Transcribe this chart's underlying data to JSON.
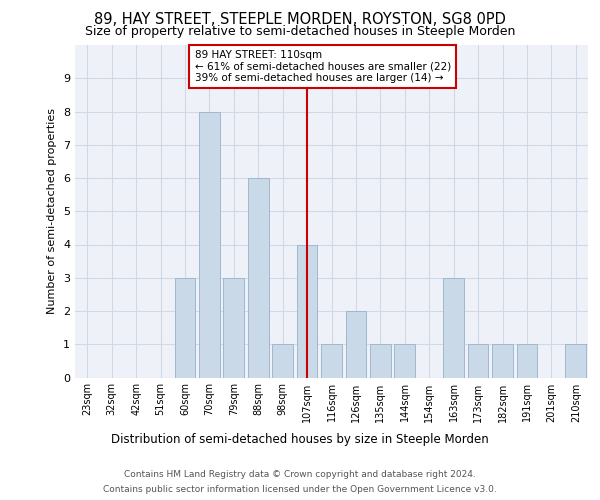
{
  "title": "89, HAY STREET, STEEPLE MORDEN, ROYSTON, SG8 0PD",
  "subtitle": "Size of property relative to semi-detached houses in Steeple Morden",
  "xlabel": "Distribution of semi-detached houses by size in Steeple Morden",
  "ylabel": "Number of semi-detached properties",
  "footer_line1": "Contains HM Land Registry data © Crown copyright and database right 2024.",
  "footer_line2": "Contains public sector information licensed under the Open Government Licence v3.0.",
  "categories": [
    "23sqm",
    "32sqm",
    "42sqm",
    "51sqm",
    "60sqm",
    "70sqm",
    "79sqm",
    "88sqm",
    "98sqm",
    "107sqm",
    "116sqm",
    "126sqm",
    "135sqm",
    "144sqm",
    "154sqm",
    "163sqm",
    "173sqm",
    "182sqm",
    "191sqm",
    "201sqm",
    "210sqm"
  ],
  "values": [
    0,
    0,
    0,
    0,
    3,
    8,
    3,
    6,
    1,
    4,
    1,
    2,
    1,
    1,
    0,
    3,
    1,
    1,
    1,
    0,
    1
  ],
  "bar_color": "#c9d9e8",
  "bar_edgecolor": "#a0b8d0",
  "vline_index": 9,
  "vline_color": "#cc0000",
  "annotation_title": "89 HAY STREET: 110sqm",
  "annotation_line2": "← 61% of semi-detached houses are smaller (22)",
  "annotation_line3": "39% of semi-detached houses are larger (14) →",
  "annotation_box_color": "#cc0000",
  "ylim": [
    0,
    10
  ],
  "yticks": [
    0,
    1,
    2,
    3,
    4,
    5,
    6,
    7,
    8,
    9
  ],
  "grid_color": "#d0d8e8",
  "background_color": "#eef2f8",
  "title_fontsize": 10.5,
  "subtitle_fontsize": 9
}
